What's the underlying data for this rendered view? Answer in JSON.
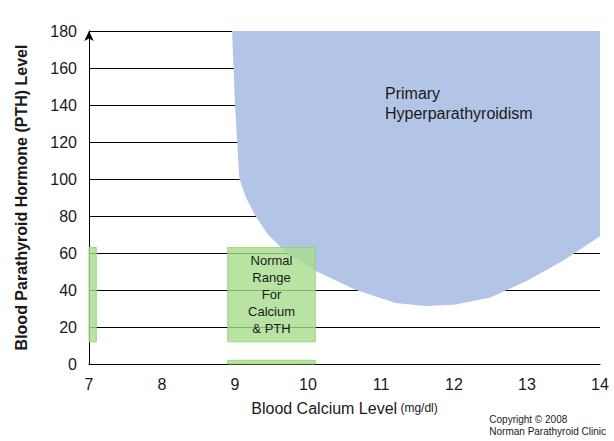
{
  "chart_data": {
    "type": "region",
    "xlabel": "Blood Calcium Level (mg/dl)",
    "ylabel": "Blood Parathyroid Hormone (PTH) Level",
    "xlim": [
      7,
      14
    ],
    "xticks": [
      7,
      8,
      9,
      10,
      11,
      12,
      13,
      14
    ],
    "ylim": [
      0,
      180
    ],
    "yticks": [
      0,
      20,
      40,
      60,
      80,
      100,
      120,
      140,
      160,
      180
    ],
    "grid": true,
    "regions": [
      {
        "label": "Primary\nHyperparathyroidism",
        "color": "#b3c5e6",
        "x": [
          8.96,
          9.0,
          9.06,
          9.15,
          9.28,
          9.45,
          9.71,
          10.12,
          10.66,
          11.2,
          11.6,
          12.0,
          12.5,
          13.0,
          13.5,
          14,
          14
        ],
        "y": [
          180,
          140,
          100,
          90,
          80,
          70,
          60,
          50,
          40,
          33,
          31.4,
          32,
          36,
          45,
          56,
          69,
          180
        ]
      }
    ],
    "rectangles": [
      {
        "label": "Normal\nRange\nFor\nCalcium\n& PTH",
        "color": "#a8dc8c",
        "x": [
          8.9,
          10.1
        ],
        "y": [
          12,
          63
        ]
      },
      {
        "color": "#a8dc8c",
        "x": [
          7.0,
          7.1
        ],
        "y": [
          12,
          63
        ]
      },
      {
        "color": "#a8dc8c",
        "x": [
          8.9,
          10.1
        ],
        "y": [
          0,
          2
        ]
      }
    ],
    "credit": "Copyright © 2008\nNorman Parathyroid Clinic"
  }
}
